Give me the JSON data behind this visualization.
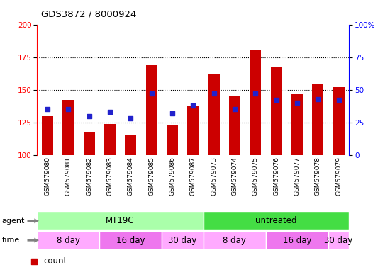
{
  "title": "GDS3872 / 8000924",
  "samples": [
    "GSM579080",
    "GSM579081",
    "GSM579082",
    "GSM579083",
    "GSM579084",
    "GSM579085",
    "GSM579086",
    "GSM579087",
    "GSM579073",
    "GSM579074",
    "GSM579075",
    "GSM579076",
    "GSM579077",
    "GSM579078",
    "GSM579079"
  ],
  "count_values": [
    130,
    142,
    118,
    124,
    115,
    169,
    123,
    138,
    162,
    145,
    180,
    167,
    147,
    155,
    152
  ],
  "percentile_values": [
    35,
    35,
    30,
    33,
    28,
    47,
    32,
    38,
    47,
    35,
    47,
    42,
    40,
    43,
    42
  ],
  "ylim_left": [
    100,
    200
  ],
  "ylim_right": [
    0,
    100
  ],
  "yticks_left": [
    100,
    125,
    150,
    175,
    200
  ],
  "yticks_right": [
    0,
    25,
    50,
    75,
    100
  ],
  "bar_color": "#cc0000",
  "dot_color": "#2222cc",
  "bar_width": 0.55,
  "agent_groups": [
    {
      "label": "MT19C",
      "start": 0,
      "end": 7,
      "color": "#aaffaa"
    },
    {
      "label": "untreated",
      "start": 8,
      "end": 14,
      "color": "#44dd44"
    }
  ],
  "time_groups": [
    {
      "label": "8 day",
      "start": 0,
      "end": 2,
      "color": "#ffaaff"
    },
    {
      "label": "16 day",
      "start": 3,
      "end": 5,
      "color": "#ee77ee"
    },
    {
      "label": "30 day",
      "start": 6,
      "end": 7,
      "color": "#ffaaff"
    },
    {
      "label": "8 day",
      "start": 8,
      "end": 10,
      "color": "#ffaaff"
    },
    {
      "label": "16 day",
      "start": 11,
      "end": 13,
      "color": "#ee77ee"
    },
    {
      "label": "30 day",
      "start": 14,
      "end": 14,
      "color": "#ffaaff"
    }
  ],
  "bg_color": "#cccccc",
  "plot_bg": "#ffffff"
}
